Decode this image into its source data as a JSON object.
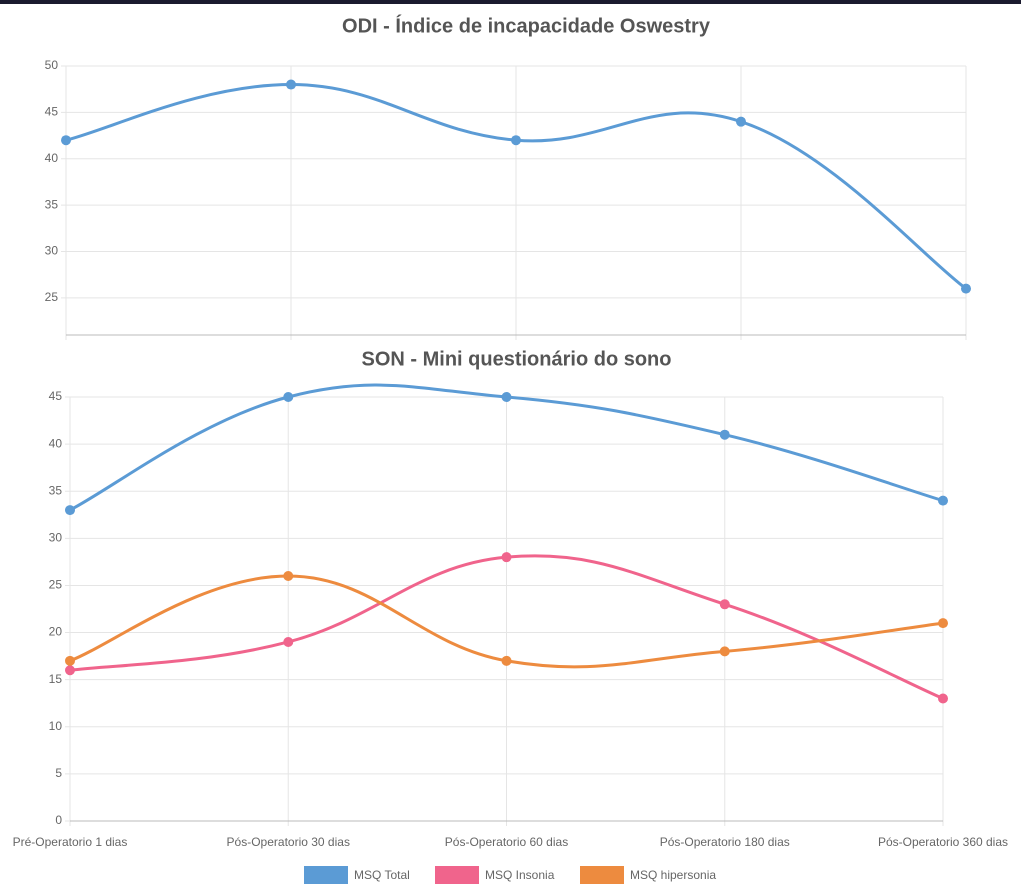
{
  "chart_data": [
    {
      "type": "line",
      "title": "ODI - Índice de incapacidade Oswestry",
      "categories": [
        null,
        null,
        null,
        null,
        null
      ],
      "series": [
        {
          "name": null,
          "color": "#5b9bd5",
          "values": [
            42,
            48,
            42,
            44,
            26
          ]
        }
      ],
      "ylim": [
        21,
        50
      ],
      "yticks": [
        25,
        30,
        35,
        40,
        45,
        50
      ],
      "grid": true,
      "legend": null
    },
    {
      "type": "line",
      "title": "SON - Mini questionário do sono",
      "categories": [
        "Pré-Operatorio 1 dias",
        "Pós-Operatorio 30 dias",
        "Pós-Operatorio 60 dias",
        "Pós-Operatorio 180 dias",
        "Pós-Operatorio 360 dias"
      ],
      "series": [
        {
          "name": "MSQ Total",
          "color": "#5b9bd5",
          "values": [
            33,
            45,
            45,
            41,
            34
          ]
        },
        {
          "name": "MSQ Insonia",
          "color": "#f0648c",
          "values": [
            16,
            19,
            28,
            23,
            13
          ]
        },
        {
          "name": "MSQ hipersonia",
          "color": "#ed8b3f",
          "values": [
            17,
            26,
            17,
            18,
            21
          ]
        }
      ],
      "ylim": [
        0,
        45
      ],
      "yticks": [
        0,
        5,
        10,
        15,
        20,
        25,
        30,
        35,
        40,
        45
      ],
      "grid": true,
      "legend": "bottom"
    }
  ]
}
